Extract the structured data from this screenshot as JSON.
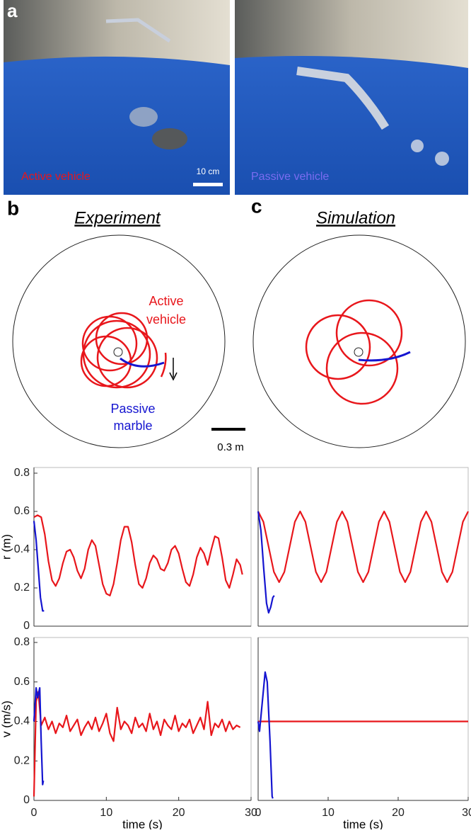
{
  "panel_a": {
    "label": "a",
    "left_caption": "Active vehicle",
    "scale_label": "10 cm",
    "right_caption": "Passive vehicle"
  },
  "panel_b": {
    "label": "b",
    "title": "Experiment",
    "active_label": [
      "Active",
      "vehicle"
    ],
    "passive_label": [
      "Passive",
      "marble"
    ],
    "scale_label": "0.3 m"
  },
  "panel_c": {
    "label": "c",
    "title": "Simulation"
  },
  "chart_data": [
    {
      "type": "line",
      "ylabel": "r (m)",
      "xlim": [
        0,
        30
      ],
      "ylim": [
        0,
        0.8
      ],
      "yticks": [
        0,
        0.2,
        0.4,
        0.6,
        0.8
      ],
      "series": [
        {
          "name": "Active vehicle",
          "color": "#e8161b",
          "x": [
            0,
            0.5,
            1,
            1.5,
            2,
            2.5,
            3,
            3.5,
            4,
            4.5,
            5,
            5.5,
            6,
            6.5,
            7,
            7.5,
            8,
            8.5,
            9,
            9.5,
            10,
            10.5,
            11,
            11.5,
            12,
            12.5,
            13,
            13.5,
            14,
            14.5,
            15,
            15.5,
            16,
            16.5,
            17,
            17.5,
            18,
            18.5,
            19,
            19.5,
            20,
            20.5,
            21,
            21.5,
            22,
            22.5,
            23,
            23.5,
            24,
            24.5,
            25,
            25.5,
            26,
            26.5,
            27,
            27.5,
            28,
            28.5,
            28.8
          ],
          "values": [
            0.57,
            0.58,
            0.57,
            0.48,
            0.34,
            0.24,
            0.21,
            0.25,
            0.33,
            0.39,
            0.4,
            0.36,
            0.29,
            0.25,
            0.3,
            0.4,
            0.45,
            0.42,
            0.32,
            0.22,
            0.17,
            0.16,
            0.22,
            0.33,
            0.45,
            0.52,
            0.52,
            0.44,
            0.32,
            0.22,
            0.2,
            0.25,
            0.33,
            0.37,
            0.35,
            0.3,
            0.29,
            0.33,
            0.4,
            0.42,
            0.38,
            0.3,
            0.23,
            0.21,
            0.27,
            0.36,
            0.41,
            0.38,
            0.32,
            0.4,
            0.47,
            0.46,
            0.36,
            0.24,
            0.2,
            0.27,
            0.35,
            0.32,
            0.27
          ]
        },
        {
          "name": "Passive marble",
          "color": "#1515d0",
          "x": [
            0,
            0.3,
            0.6,
            0.9,
            1.2,
            1.4
          ],
          "values": [
            0.55,
            0.45,
            0.3,
            0.15,
            0.08,
            0.08
          ]
        }
      ]
    },
    {
      "type": "line",
      "xlim": [
        0,
        30
      ],
      "ylim": [
        0,
        0.8
      ],
      "series": [
        {
          "name": "Active vehicle",
          "color": "#e8161b",
          "x": [
            0,
            0.75,
            1.5,
            2.25,
            3,
            3.75,
            4.5,
            5.25,
            6,
            6.75,
            7.5,
            8.25,
            9,
            9.75,
            10.5,
            11.25,
            12,
            12.75,
            13.5,
            14.25,
            15,
            15.75,
            16.5,
            17.25,
            18,
            18.75,
            19.5,
            20.25,
            21,
            21.75,
            22.5,
            23.25,
            24,
            24.75,
            25.5,
            26.25,
            27,
            27.75,
            28.5,
            29.25,
            30
          ],
          "values": [
            0.6,
            0.546,
            0.415,
            0.284,
            0.23,
            0.284,
            0.415,
            0.546,
            0.6,
            0.546,
            0.415,
            0.284,
            0.23,
            0.284,
            0.415,
            0.546,
            0.6,
            0.546,
            0.415,
            0.284,
            0.23,
            0.284,
            0.415,
            0.546,
            0.6,
            0.546,
            0.415,
            0.284,
            0.23,
            0.284,
            0.415,
            0.546,
            0.6,
            0.546,
            0.415,
            0.284,
            0.23,
            0.284,
            0.415,
            0.546,
            0.6
          ]
        },
        {
          "name": "Passive marble",
          "color": "#1515d0",
          "x": [
            0,
            0.4,
            0.8,
            1.2,
            1.5,
            1.8,
            2.1,
            2.3
          ],
          "values": [
            0.6,
            0.5,
            0.3,
            0.12,
            0.07,
            0.1,
            0.15,
            0.16
          ]
        }
      ]
    },
    {
      "type": "line",
      "ylabel": "v (m/s)",
      "xlabel": "time (s)",
      "xlim": [
        0,
        30
      ],
      "ylim": [
        0,
        0.8
      ],
      "yticks": [
        0,
        0.2,
        0.4,
        0.6,
        0.8
      ],
      "xticks": [
        0,
        10,
        20,
        30
      ],
      "series": [
        {
          "name": "Active vehicle",
          "color": "#e8161b",
          "x": [
            0,
            0.3,
            0.6,
            1,
            1.5,
            2,
            2.5,
            3,
            3.5,
            4,
            4.5,
            5,
            5.5,
            6,
            6.5,
            7,
            7.5,
            8,
            8.5,
            9,
            9.5,
            10,
            10.5,
            11,
            11.5,
            12,
            12.5,
            13,
            13.5,
            14,
            14.5,
            15,
            15.5,
            16,
            16.5,
            17,
            17.5,
            18,
            18.5,
            19,
            19.5,
            20,
            20.5,
            21,
            21.5,
            22,
            22.5,
            23,
            23.5,
            24,
            24.5,
            25,
            25.5,
            26,
            26.5,
            27,
            27.5,
            28,
            28.5
          ],
          "values": [
            0.02,
            0.5,
            0.55,
            0.38,
            0.42,
            0.36,
            0.4,
            0.34,
            0.39,
            0.37,
            0.43,
            0.35,
            0.38,
            0.41,
            0.33,
            0.37,
            0.4,
            0.36,
            0.42,
            0.35,
            0.39,
            0.44,
            0.34,
            0.3,
            0.47,
            0.36,
            0.4,
            0.38,
            0.34,
            0.42,
            0.37,
            0.39,
            0.35,
            0.44,
            0.36,
            0.4,
            0.33,
            0.41,
            0.38,
            0.36,
            0.43,
            0.35,
            0.39,
            0.37,
            0.41,
            0.34,
            0.38,
            0.42,
            0.36,
            0.5,
            0.33,
            0.39,
            0.37,
            0.41,
            0.35,
            0.4,
            0.36,
            0.38,
            0.37
          ]
        },
        {
          "name": "Passive marble",
          "color": "#1515d0",
          "x": [
            0,
            0.3,
            0.5,
            0.8,
            1,
            1.2,
            1.3
          ],
          "values": [
            0.4,
            0.57,
            0.52,
            0.57,
            0.3,
            0.08,
            0.1
          ]
        }
      ]
    },
    {
      "type": "line",
      "xlabel": "time (s)",
      "xlim": [
        0,
        30
      ],
      "ylim": [
        0,
        0.8
      ],
      "xticks": [
        0,
        10,
        20,
        30
      ],
      "series": [
        {
          "name": "Active vehicle",
          "color": "#e8161b",
          "x": [
            0,
            30
          ],
          "values": [
            0.4,
            0.4
          ]
        },
        {
          "name": "Passive marble",
          "color": "#1515d0",
          "x": [
            0,
            0.2,
            0.6,
            1,
            1.3,
            1.7,
            2,
            2.1
          ],
          "values": [
            0.4,
            0.35,
            0.5,
            0.65,
            0.6,
            0.3,
            0.02,
            0.01
          ]
        }
      ]
    }
  ]
}
